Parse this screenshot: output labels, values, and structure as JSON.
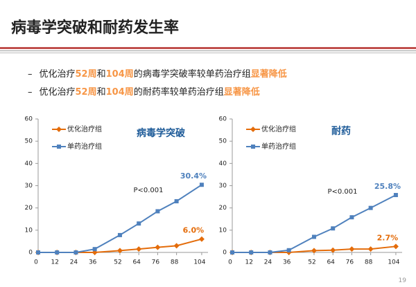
{
  "slide": {
    "title": "病毒学突破和耐药发生率",
    "bullets": [
      {
        "marker": "–",
        "parts": [
          "优化治疗",
          "52周",
          "和",
          "104周",
          "的病毒学突破率较单药治疗组",
          "显著降低"
        ]
      },
      {
        "marker": "–",
        "parts": [
          "优化治疗",
          "52周",
          "和",
          "104周",
          "的耐药率较单药治疗组",
          "显著降低"
        ]
      }
    ],
    "page_number": "19"
  },
  "chart_data": [
    {
      "type": "line",
      "title": "病毒学突破",
      "annotation": "P<0.001",
      "legend": "upper left",
      "x": [
        0,
        12,
        24,
        36,
        52,
        64,
        76,
        88,
        104
      ],
      "xlim": [
        0,
        108
      ],
      "xticks": [
        0,
        12,
        24,
        36,
        52,
        64,
        76,
        88,
        104
      ],
      "ylim": [
        0,
        60
      ],
      "yticks": [
        0,
        10,
        20,
        30,
        40,
        50,
        60
      ],
      "series": [
        {
          "name": "优化治疗组",
          "color": "#e46c0a",
          "marker": "diamond",
          "values": [
            0,
            0,
            0,
            0,
            0.8,
            1.5,
            2.3,
            3,
            6.0
          ],
          "value_labels": [
            null,
            null,
            null,
            null,
            null,
            null,
            null,
            null,
            "6.0%"
          ]
        },
        {
          "name": "单药治疗组",
          "color": "#4f81bd",
          "marker": "square",
          "values": [
            0,
            0,
            0,
            1.5,
            7.8,
            13,
            18.5,
            23,
            30.4
          ],
          "value_labels": [
            null,
            null,
            null,
            null,
            null,
            null,
            null,
            null,
            "30.4%"
          ]
        }
      ]
    },
    {
      "type": "line",
      "title": "耐药",
      "annotation": "P<0.001",
      "legend": "upper left",
      "x": [
        0,
        12,
        24,
        36,
        52,
        64,
        76,
        88,
        104
      ],
      "xlim": [
        0,
        108
      ],
      "xticks": [
        0,
        12,
        24,
        36,
        52,
        64,
        76,
        88,
        104
      ],
      "ylim": [
        0,
        60
      ],
      "yticks": [
        0,
        10,
        20,
        30,
        40,
        50,
        60
      ],
      "series": [
        {
          "name": "优化治疗组",
          "color": "#e46c0a",
          "marker": "diamond",
          "values": [
            0,
            0,
            0,
            0,
            0.8,
            1,
            1.5,
            1.5,
            2.7
          ],
          "value_labels": [
            null,
            null,
            null,
            null,
            null,
            null,
            null,
            null,
            "2.7%"
          ]
        },
        {
          "name": "单药治疗组",
          "color": "#4f81bd",
          "marker": "square",
          "values": [
            0,
            0,
            0,
            1,
            7,
            10.8,
            15.8,
            20,
            25.8
          ],
          "value_labels": [
            null,
            null,
            null,
            null,
            null,
            null,
            null,
            null,
            "25.8%"
          ]
        }
      ]
    }
  ]
}
